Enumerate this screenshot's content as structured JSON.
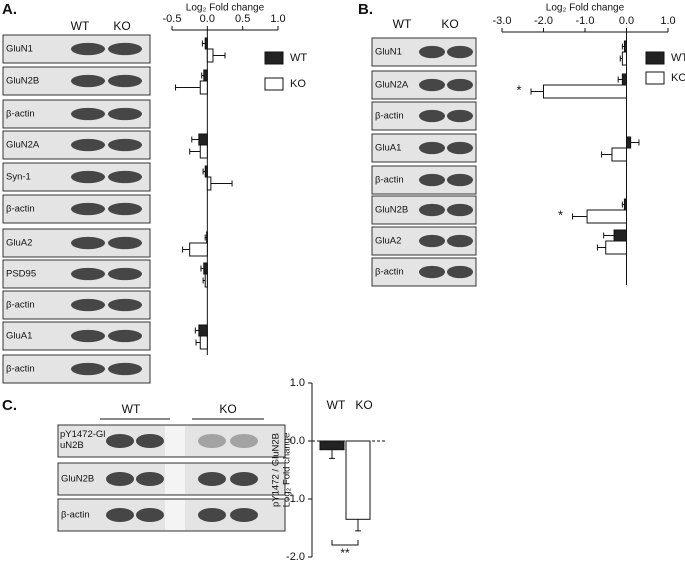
{
  "panel_labels": [
    "A.",
    "B.",
    "C."
  ],
  "blots": [
    {
      "columns": [
        "WT",
        "KO"
      ],
      "rows": [
        "GluN1",
        "GluN2B",
        "β-actin",
        "GluN2A",
        "Syn-1",
        "β-actin",
        "GluA2",
        "PSD95",
        "β-actin",
        "GluA1",
        "β-actin"
      ]
    },
    {
      "columns": [
        "WT",
        "KO"
      ],
      "rows": [
        "GluN1",
        "GluN2A",
        "β-actin",
        "GluA1",
        "β-actin",
        "GluN2B",
        "GluA2",
        "β-actin"
      ]
    },
    {
      "columns": [
        "WT",
        "KO"
      ],
      "rows": [
        "pY1472-GluN2B",
        "GluN2B",
        "β-actin"
      ]
    }
  ],
  "chart_data": [
    {
      "type": "hbar",
      "x_label": "Log₂ Fold change",
      "xlim": [
        -0.5,
        1.0
      ],
      "xticks": [
        -0.5,
        {
          "value": 0,
          "label": "0.0"
        },
        0.5,
        {
          "value": 1,
          "label": "1.0"
        }
      ],
      "categories": [
        "GluN1",
        "GluN2B",
        "GluN2A",
        "Syn-1",
        "GluA2",
        "PSD95",
        "GluA1"
      ],
      "series": [
        {
          "name": "WT",
          "color": "#222222",
          "values": [
            -0.03,
            -0.05,
            -0.12,
            -0.03,
            -0.01,
            -0.05,
            -0.12
          ],
          "errors": [
            0.04,
            0.03,
            0.1,
            0.03,
            0.02,
            0.04,
            0.05
          ]
        },
        {
          "name": "KO",
          "color": "#ffffff",
          "values": [
            0.08,
            -0.1,
            -0.1,
            0.05,
            -0.25,
            -0.03,
            -0.1
          ],
          "errors": [
            0.17,
            0.35,
            0.15,
            0.3,
            0.1,
            0.03,
            0.06
          ]
        }
      ],
      "legend": "right"
    },
    {
      "type": "hbar",
      "x_label": "Log₂ Fold change",
      "xlim": [
        -3.0,
        1.0
      ],
      "xticks": [
        {
          "value": -3,
          "label": "-3.0"
        },
        {
          "value": -2,
          "label": "-2.0"
        },
        {
          "value": -1,
          "label": "-1.0"
        },
        {
          "value": 0,
          "label": "0.0"
        },
        {
          "value": 1,
          "label": "1.0"
        }
      ],
      "categories": [
        "GluN1",
        "GluN2A",
        "GluA1",
        "GluN2B",
        "GluA2"
      ],
      "series": [
        {
          "name": "WT",
          "color": "#222222",
          "values": [
            -0.05,
            -0.1,
            0.1,
            -0.05,
            -0.3
          ],
          "errors": [
            0.05,
            0.1,
            0.2,
            0.05,
            0.25
          ]
        },
        {
          "name": "KO",
          "color": "#ffffff",
          "values": [
            -0.1,
            -2.0,
            -0.35,
            -0.95,
            -0.5
          ],
          "errors": [
            0.05,
            0.3,
            0.25,
            0.35,
            0.2
          ]
        }
      ],
      "annotations": [
        {
          "text": "*",
          "category": "GluN2A"
        },
        {
          "text": "*",
          "category": "GluN2B"
        }
      ],
      "legend": "right"
    },
    {
      "type": "bar",
      "y_label": [
        "pY1472 / GluN2B",
        "Log₂ Fold change"
      ],
      "ylim": [
        -2.0,
        1.0
      ],
      "yticks": [
        {
          "value": 1,
          "label": "1.0"
        },
        {
          "value": 0,
          "label": "0.0"
        },
        {
          "value": -1,
          "label": "-1.0"
        },
        {
          "value": -2,
          "label": "-2.0"
        }
      ],
      "categories": [
        "WT",
        "KO"
      ],
      "values": [
        -0.15,
        -1.35
      ],
      "errors": [
        0.15,
        0.2
      ],
      "colors": [
        "#222222",
        "#ffffff"
      ],
      "annotations": [
        {
          "text": "**"
        }
      ]
    }
  ]
}
